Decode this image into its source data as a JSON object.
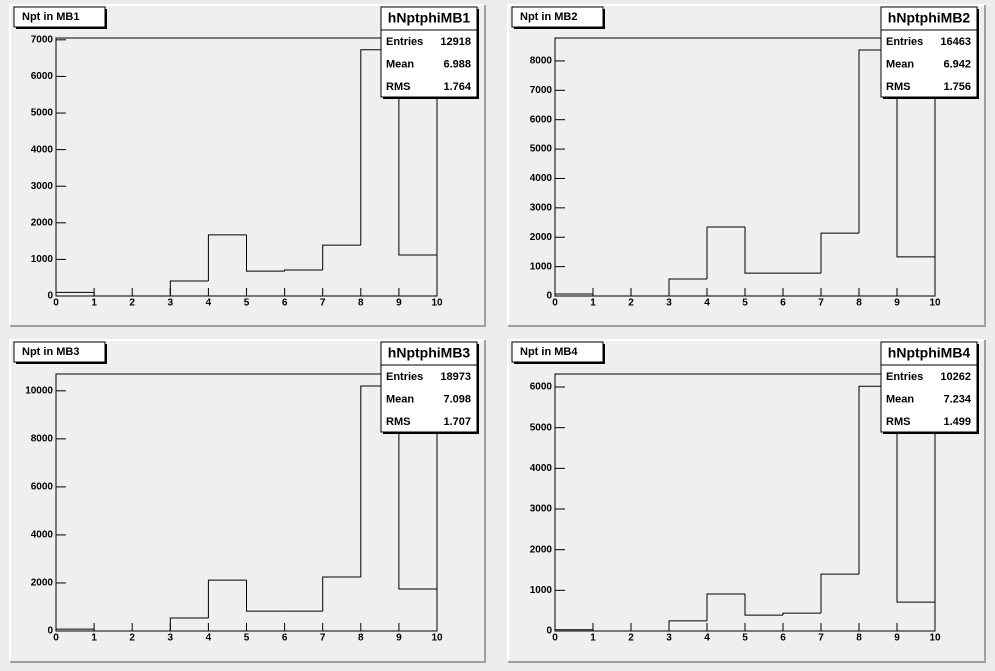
{
  "chart_data": [
    {
      "type": "histogram",
      "title": "Npt in MB1",
      "stats_name": "hNptphiMB1",
      "stats_labels": [
        "Entries",
        "Mean",
        "RMS"
      ],
      "stats_values": [
        12918,
        6.988,
        1.764
      ],
      "bins": [
        0,
        1,
        2,
        3,
        4,
        5,
        6,
        7,
        8,
        9,
        10
      ],
      "values": [
        100,
        0,
        0,
        410,
        1670,
        680,
        710,
        1390,
        6730,
        1120
      ],
      "xlim": [
        0,
        10
      ],
      "xticks": [
        0,
        1,
        2,
        3,
        4,
        5,
        6,
        7,
        8,
        9,
        10
      ],
      "ylim": [
        0,
        7050
      ],
      "yticks": [
        0,
        1000,
        2000,
        3000,
        4000,
        5000,
        6000,
        7000
      ],
      "color": "#000000"
    },
    {
      "type": "histogram",
      "title": "Npt in MB2",
      "stats_name": "hNptphiMB2",
      "stats_labels": [
        "Entries",
        "Mean",
        "RMS"
      ],
      "stats_values": [
        16463,
        6.942,
        1.756
      ],
      "bins": [
        0,
        1,
        2,
        3,
        4,
        5,
        6,
        7,
        8,
        9,
        10
      ],
      "values": [
        70,
        0,
        0,
        580,
        2350,
        780,
        780,
        2140,
        8370,
        1330
      ],
      "xlim": [
        0,
        10
      ],
      "xticks": [
        0,
        1,
        2,
        3,
        4,
        5,
        6,
        7,
        8,
        9,
        10
      ],
      "ylim": [
        0,
        8780
      ],
      "yticks": [
        0,
        1000,
        2000,
        3000,
        4000,
        5000,
        6000,
        7000,
        8000
      ],
      "color": "#000000"
    },
    {
      "type": "histogram",
      "title": "Npt in MB3",
      "stats_name": "hNptphiMB3",
      "stats_labels": [
        "Entries",
        "Mean",
        "RMS"
      ],
      "stats_values": [
        18973,
        7.098,
        1.707
      ],
      "bins": [
        0,
        1,
        2,
        3,
        4,
        5,
        6,
        7,
        8,
        9,
        10
      ],
      "values": [
        80,
        0,
        0,
        540,
        2120,
        830,
        830,
        2250,
        10200,
        1750
      ],
      "xlim": [
        0,
        10
      ],
      "xticks": [
        0,
        1,
        2,
        3,
        4,
        5,
        6,
        7,
        8,
        9,
        10
      ],
      "ylim": [
        0,
        10700
      ],
      "yticks": [
        0,
        2000,
        4000,
        6000,
        8000,
        10000
      ],
      "color": "#000000"
    },
    {
      "type": "histogram",
      "title": "Npt in MB4",
      "stats_name": "hNptphiMB4",
      "stats_labels": [
        "Entries",
        "Mean",
        "RMS"
      ],
      "stats_values": [
        10262,
        7.234,
        1.499
      ],
      "bins": [
        0,
        1,
        2,
        3,
        4,
        5,
        6,
        7,
        8,
        9,
        10
      ],
      "values": [
        30,
        0,
        0,
        250,
        910,
        390,
        440,
        1400,
        6020,
        710
      ],
      "xlim": [
        0,
        10
      ],
      "xticks": [
        0,
        1,
        2,
        3,
        4,
        5,
        6,
        7,
        8,
        9,
        10
      ],
      "ylim": [
        0,
        6320
      ],
      "yticks": [
        0,
        1000,
        2000,
        3000,
        4000,
        5000,
        6000
      ],
      "color": "#000000"
    }
  ]
}
